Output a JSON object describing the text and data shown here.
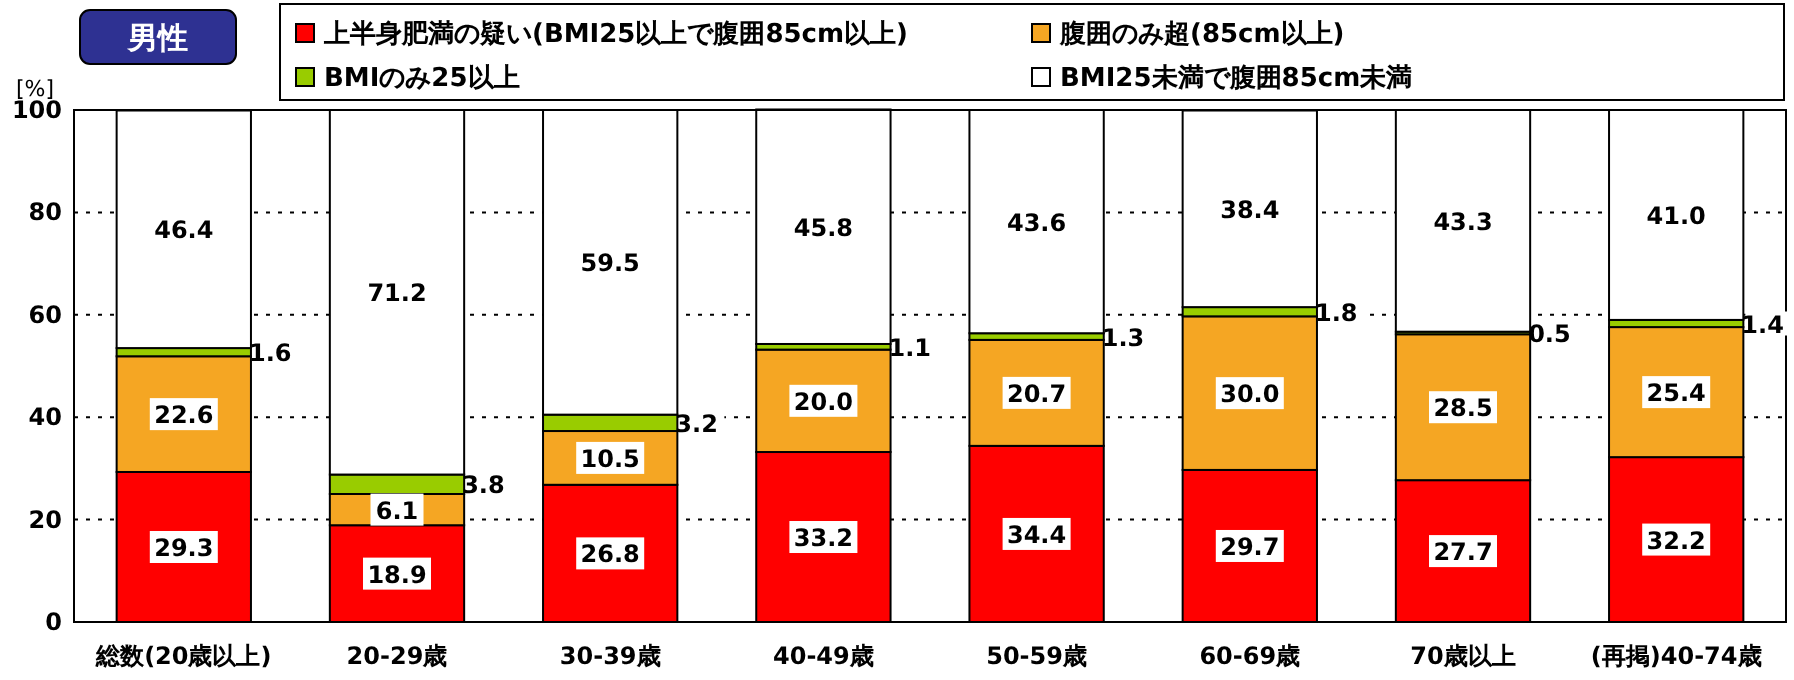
{
  "chart_data": {
    "type": "bar",
    "stacked": true,
    "title": "男性",
    "ylabel": "[%]",
    "categories": [
      "総数(20歳以上)",
      "20-29歳",
      "30-39歳",
      "40-49歳",
      "50-59歳",
      "60-69歳",
      "70歳以上",
      "(再掲)40-74歳"
    ],
    "series": [
      {
        "name": "上半身肥満の疑い(BMI25以上で腹囲85cm以上)",
        "color": "#ff0000",
        "values": [
          29.3,
          18.9,
          26.8,
          33.2,
          34.4,
          29.7,
          27.7,
          32.2
        ],
        "value_labels": [
          "29.3",
          "18.9",
          "26.8",
          "33.2",
          "34.4",
          "29.7",
          "27.7",
          "32.2"
        ]
      },
      {
        "name": "腹囲のみ超(85cm以上)",
        "color": "#f5a623",
        "values": [
          22.6,
          6.1,
          10.5,
          20.0,
          20.7,
          30.0,
          28.5,
          25.4
        ],
        "value_labels": [
          "22.6",
          "6.1",
          "10.5",
          "20.0",
          "20.7",
          "30.0",
          "28.5",
          "25.4"
        ]
      },
      {
        "name": "BMIのみ25以上",
        "color": "#99cc00",
        "values": [
          1.6,
          3.8,
          3.2,
          1.1,
          1.3,
          1.8,
          0.5,
          1.4
        ],
        "value_labels": [
          "1.6",
          "3.8",
          "3.2",
          "1.1",
          "1.3",
          "1.8",
          "0.5",
          "1.4"
        ]
      },
      {
        "name": "BMI25未満で腹囲85cm未満",
        "color": "#ffffff",
        "values": [
          46.4,
          71.2,
          59.5,
          45.8,
          43.6,
          38.4,
          43.3,
          41.0
        ],
        "value_labels": [
          "46.4",
          "71.2",
          "59.5",
          "45.8",
          "43.6",
          "38.4",
          "43.3",
          "41.0"
        ]
      }
    ],
    "ylim": [
      0,
      100
    ],
    "yticks": [
      0,
      20,
      40,
      60,
      80,
      100
    ],
    "grid": "y",
    "legend": "top"
  }
}
